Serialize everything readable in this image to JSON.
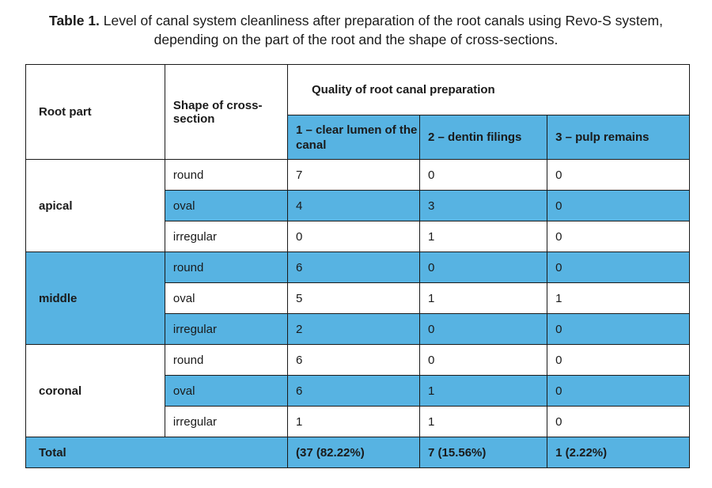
{
  "caption": {
    "label": "Table 1.",
    "text": " Level of canal system cleanliness after preparation of the root canals using Revo-S system, depending on the part of the root and the shape of cross-sections."
  },
  "table": {
    "headers": {
      "root_part": "Root part",
      "shape": "Shape of cross-section",
      "quality": "Quality of root canal preparation",
      "col1": "1 – clear lumen of the canal",
      "col2": "2 – dentin filings",
      "col3": "3 – pulp remains"
    },
    "groups": [
      {
        "root_part": "apical",
        "rows": [
          {
            "shape": "round",
            "v1": "7",
            "v2": "0",
            "v3": "0"
          },
          {
            "shape": "oval",
            "v1": "4",
            "v2": "3",
            "v3": "0"
          },
          {
            "shape": "irregular",
            "v1": "0",
            "v2": "1",
            "v3": "0"
          }
        ]
      },
      {
        "root_part": "middle",
        "rows": [
          {
            "shape": "round",
            "v1": "6",
            "v2": "0",
            "v3": "0"
          },
          {
            "shape": "oval",
            "v1": "5",
            "v2": "1",
            "v3": "1"
          },
          {
            "shape": "irregular",
            "v1": "2",
            "v2": "0",
            "v3": "0"
          }
        ]
      },
      {
        "root_part": "coronal",
        "rows": [
          {
            "shape": "round",
            "v1": "6",
            "v2": "0",
            "v3": "0"
          },
          {
            "shape": "oval",
            "v1": "6",
            "v2": "1",
            "v3": "0"
          },
          {
            "shape": "irregular",
            "v1": "1",
            "v2": "1",
            "v3": "0"
          }
        ]
      }
    ],
    "total": {
      "label": "Total",
      "v1": "(37 (82.22%)",
      "v2": "7 (15.56%)",
      "v3": "1 (2.22%)"
    },
    "accent_color": "#57b3e2"
  }
}
